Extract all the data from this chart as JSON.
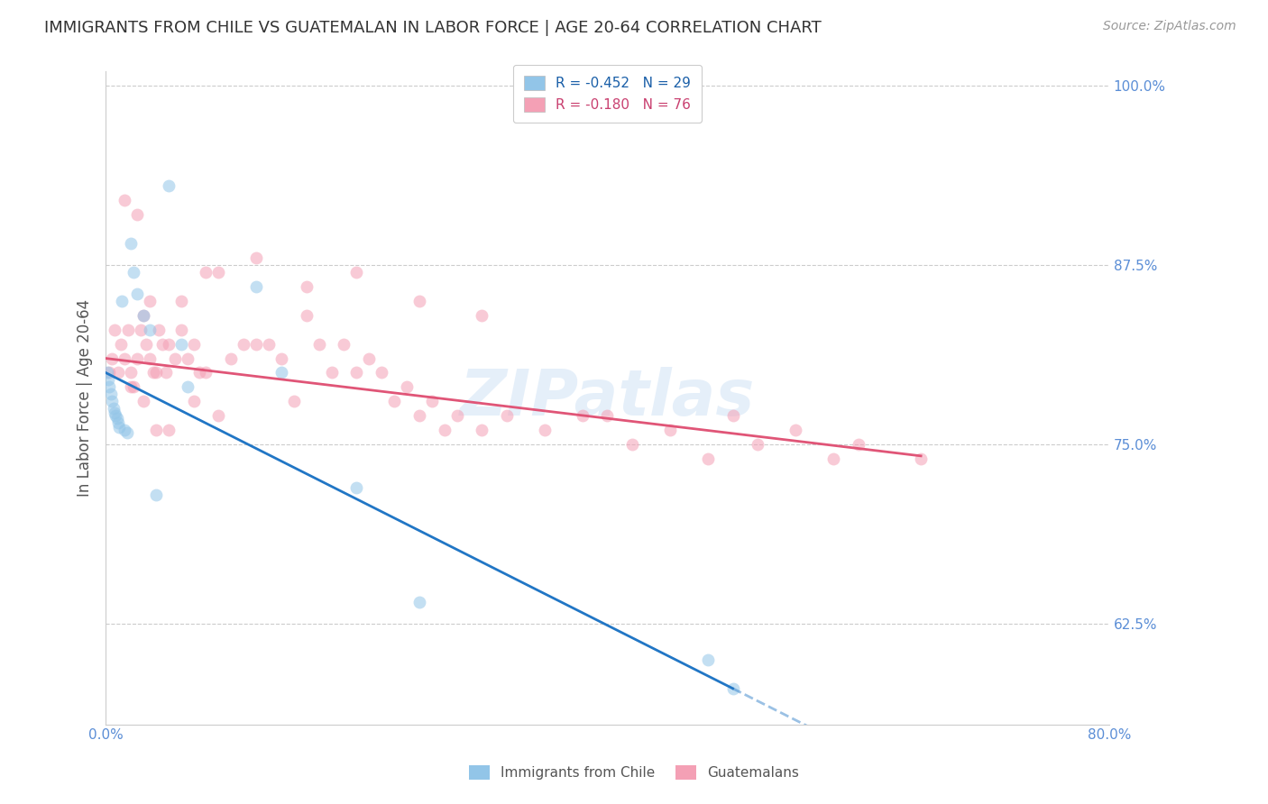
{
  "title": "IMMIGRANTS FROM CHILE VS GUATEMALAN IN LABOR FORCE | AGE 20-64 CORRELATION CHART",
  "source": "Source: ZipAtlas.com",
  "ylabel": "In Labor Force | Age 20-64",
  "xlim": [
    0.0,
    0.8
  ],
  "ylim": [
    0.555,
    1.01
  ],
  "right_yticks": [
    1.0,
    0.875,
    0.75,
    0.625
  ],
  "right_yticklabels": [
    "100.0%",
    "87.5%",
    "75.0%",
    "62.5%"
  ],
  "watermark": "ZIPatlas",
  "chile_R": -0.452,
  "chile_N": 29,
  "guatemalan_R": -0.18,
  "guatemalan_N": 76,
  "chile_color": "#92C5E8",
  "chile_line_color": "#2176C5",
  "guatemalan_color": "#F4A0B5",
  "guatemalan_line_color": "#E05577",
  "legend_R_color_chile": "#1A5FA8",
  "legend_R_color_guat": "#C94070",
  "chile_points_x": [
    0.001,
    0.002,
    0.003,
    0.004,
    0.005,
    0.006,
    0.007,
    0.008,
    0.009,
    0.01,
    0.011,
    0.013,
    0.015,
    0.017,
    0.02,
    0.022,
    0.025,
    0.03,
    0.035,
    0.04,
    0.05,
    0.06,
    0.065,
    0.12,
    0.14,
    0.2,
    0.25,
    0.48,
    0.5
  ],
  "chile_points_y": [
    0.8,
    0.795,
    0.79,
    0.785,
    0.78,
    0.775,
    0.772,
    0.77,
    0.768,
    0.765,
    0.762,
    0.85,
    0.76,
    0.758,
    0.89,
    0.87,
    0.855,
    0.84,
    0.83,
    0.715,
    0.93,
    0.82,
    0.79,
    0.86,
    0.8,
    0.72,
    0.64,
    0.6,
    0.58
  ],
  "guatemalan_points_x": [
    0.003,
    0.005,
    0.007,
    0.01,
    0.012,
    0.015,
    0.018,
    0.02,
    0.022,
    0.025,
    0.028,
    0.03,
    0.032,
    0.035,
    0.038,
    0.04,
    0.042,
    0.045,
    0.048,
    0.05,
    0.055,
    0.06,
    0.065,
    0.07,
    0.075,
    0.08,
    0.09,
    0.1,
    0.11,
    0.12,
    0.13,
    0.14,
    0.15,
    0.16,
    0.17,
    0.18,
    0.19,
    0.2,
    0.21,
    0.22,
    0.23,
    0.24,
    0.25,
    0.26,
    0.27,
    0.28,
    0.3,
    0.32,
    0.35,
    0.38,
    0.4,
    0.42,
    0.45,
    0.48,
    0.5,
    0.52,
    0.55,
    0.58,
    0.6,
    0.65,
    0.015,
    0.025,
    0.035,
    0.06,
    0.08,
    0.12,
    0.16,
    0.2,
    0.25,
    0.3,
    0.02,
    0.03,
    0.04,
    0.05,
    0.07,
    0.09
  ],
  "guatemalan_points_y": [
    0.8,
    0.81,
    0.83,
    0.8,
    0.82,
    0.81,
    0.83,
    0.8,
    0.79,
    0.81,
    0.83,
    0.84,
    0.82,
    0.81,
    0.8,
    0.8,
    0.83,
    0.82,
    0.8,
    0.82,
    0.81,
    0.83,
    0.81,
    0.82,
    0.8,
    0.8,
    0.87,
    0.81,
    0.82,
    0.82,
    0.82,
    0.81,
    0.78,
    0.84,
    0.82,
    0.8,
    0.82,
    0.8,
    0.81,
    0.8,
    0.78,
    0.79,
    0.77,
    0.78,
    0.76,
    0.77,
    0.76,
    0.77,
    0.76,
    0.77,
    0.77,
    0.75,
    0.76,
    0.74,
    0.77,
    0.75,
    0.76,
    0.74,
    0.75,
    0.74,
    0.92,
    0.91,
    0.85,
    0.85,
    0.87,
    0.88,
    0.86,
    0.87,
    0.85,
    0.84,
    0.79,
    0.78,
    0.76,
    0.76,
    0.78,
    0.77
  ],
  "chile_line_x0": 0.0,
  "chile_line_y0": 0.8,
  "chile_line_x1": 0.5,
  "chile_line_y1": 0.58,
  "chile_line_x_dash_end": 0.8,
  "guat_line_x0": 0.0,
  "guat_line_y0": 0.81,
  "guat_line_x1": 0.65,
  "guat_line_y1": 0.742,
  "background_color": "#FFFFFF",
  "grid_color": "#CCCCCC",
  "title_color": "#333333",
  "axis_label_color": "#555555",
  "right_axis_color": "#5B8ED6",
  "bottom_axis_color": "#5B8ED6",
  "marker_size": 10,
  "marker_alpha": 0.55,
  "line_width": 2.0
}
